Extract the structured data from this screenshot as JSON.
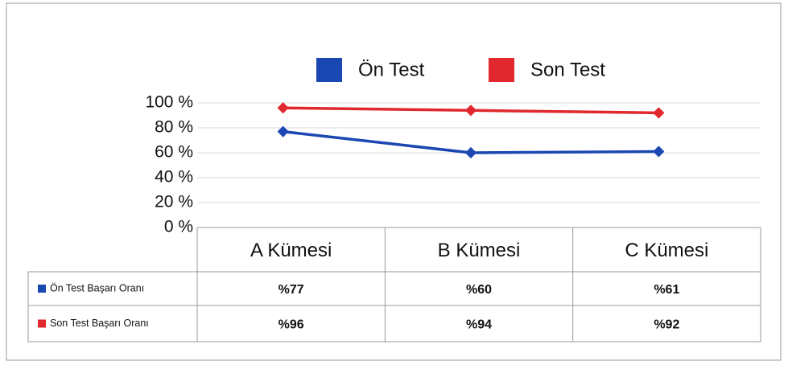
{
  "chart_data": {
    "type": "line",
    "categories": [
      "A Kümesi",
      "B Kümesi",
      "C Kümesi"
    ],
    "series": [
      {
        "name": "Ön Test",
        "table_name": "Ön Test Başarı Oranı",
        "color": "#1b47b3",
        "values": [
          77,
          60,
          61
        ],
        "value_labels": [
          "%77",
          "%60",
          "%61"
        ]
      },
      {
        "name": "Son Test",
        "table_name": "Son Test Başarı Oranı",
        "color": "#e0282e",
        "values": [
          96,
          94,
          92
        ],
        "value_labels": [
          "%96",
          "%94",
          "%92"
        ]
      }
    ],
    "ylim": [
      0,
      100
    ],
    "yticks": [
      {
        "value": 0,
        "label": "0 %"
      },
      {
        "value": 20,
        "label": "20 %"
      },
      {
        "value": 40,
        "label": "40 %"
      },
      {
        "value": 60,
        "label": "60 %"
      },
      {
        "value": 80,
        "label": "80 %"
      },
      {
        "value": 100,
        "label": "100 %"
      }
    ],
    "grid": true,
    "legend": "top"
  }
}
